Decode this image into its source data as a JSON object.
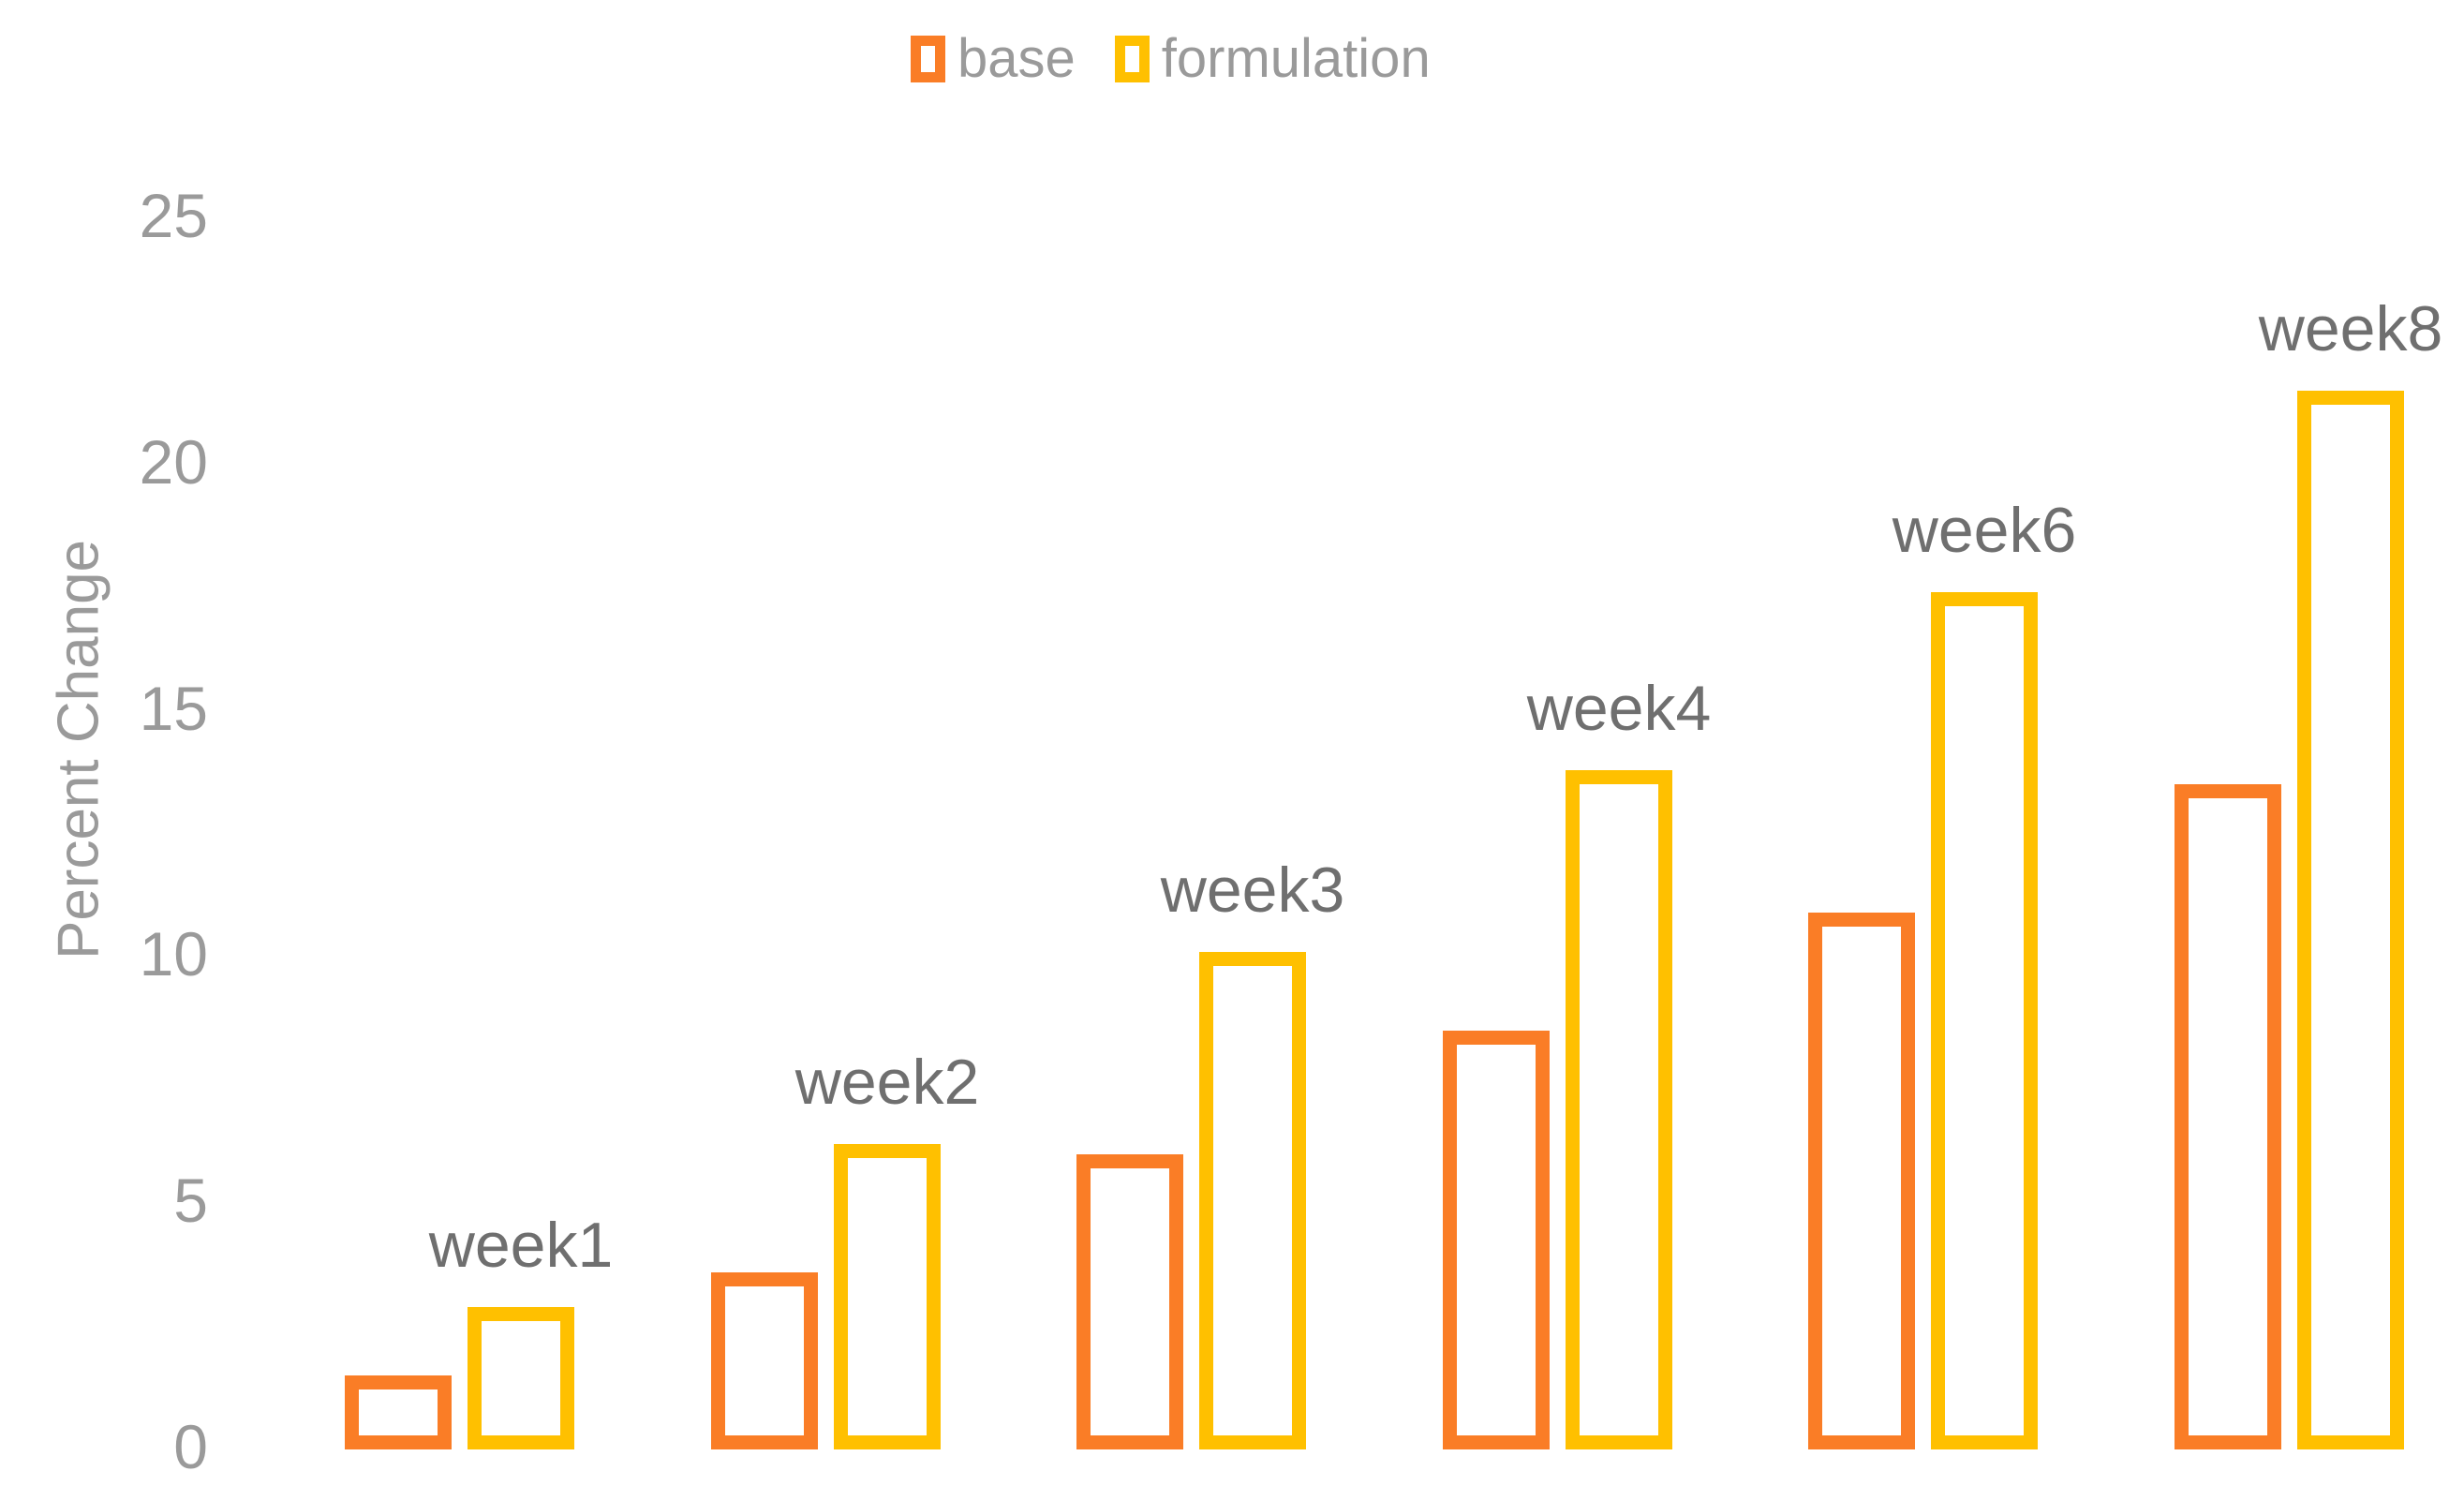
{
  "chart_data": {
    "type": "bar",
    "title": "",
    "categories": [
      "week1",
      "week2",
      "week3",
      "week4",
      "week6",
      "week8"
    ],
    "series": [
      {
        "name": "base",
        "color": "#FA7D26",
        "values": [
          1.5,
          3.6,
          6.0,
          8.5,
          10.9,
          13.5
        ]
      },
      {
        "name": "formulation",
        "color": "#FFC000",
        "values": [
          2.9,
          6.2,
          10.1,
          13.8,
          17.4,
          21.5
        ]
      }
    ],
    "xlabel": "",
    "ylabel": "Percent Change",
    "yticks": [
      0,
      5,
      10,
      15,
      20,
      25
    ],
    "ylim": [
      0,
      25
    ],
    "grid": false,
    "legend_position": "top-center",
    "bar_fill": "hollow-outline",
    "colors": {
      "base": "#FA7D26",
      "formulation": "#FFC000",
      "axis_text": "#9A9A9A",
      "category_text": "#6F6F6F",
      "background": "#FFFFFF"
    }
  }
}
